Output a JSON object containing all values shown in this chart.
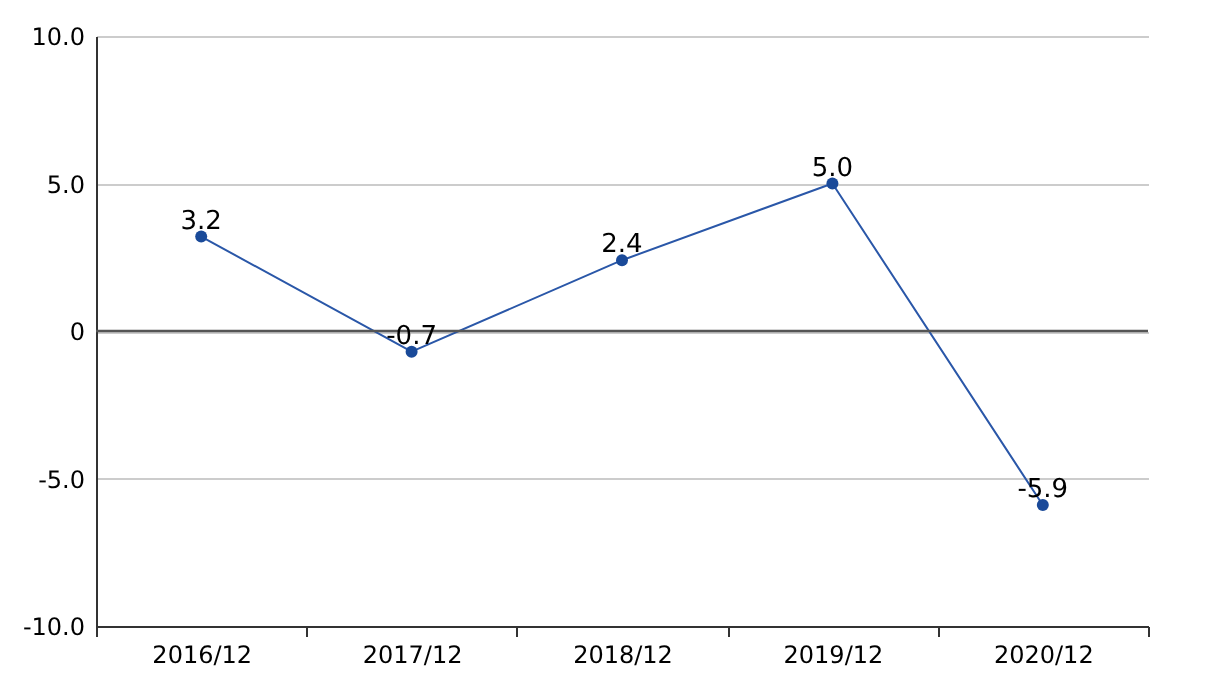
{
  "chart_data": {
    "type": "line",
    "categories": [
      "2016/12",
      "2017/12",
      "2018/12",
      "2019/12",
      "2020/12"
    ],
    "series": [
      {
        "color": "#2a57a8",
        "values": [
          3.2,
          -0.7,
          2.4,
          5.0,
          -5.9
        ],
        "value_labels": [
          "3.2",
          "-0.7",
          "2.4",
          "5.0",
          "-5.9"
        ]
      }
    ],
    "ylim": [
      -10,
      10
    ],
    "yticks": [
      {
        "value": -10,
        "label": "-10.0"
      },
      {
        "value": -5,
        "label": "-5.0"
      },
      0,
      {
        "value": 5,
        "label": "5.0"
      },
      {
        "value": 10,
        "label": "10.0"
      }
    ],
    "ref_lines": [
      {
        "axis": "y",
        "value": 0,
        "color": "#555555"
      }
    ],
    "grid": "y",
    "marker": "circle",
    "line_style": "solid"
  }
}
